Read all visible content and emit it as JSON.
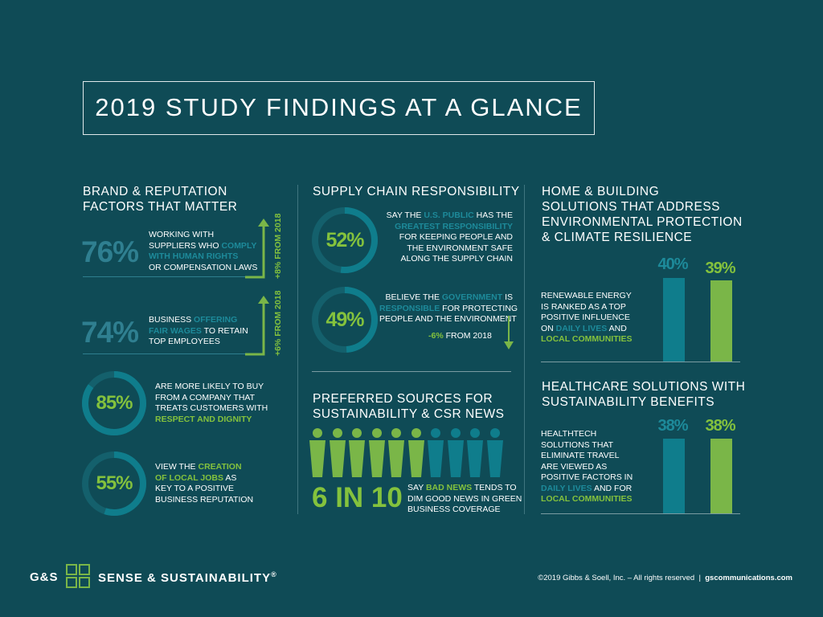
{
  "title": "2019 STUDY FINDINGS AT A GLANCE",
  "brand": {
    "heading": "BRAND & REPUTATION\nFACTORS THAT MATTER",
    "stat1": {
      "pct": "76%",
      "l1": "WORKING WITH",
      "l2a": "SUPPLIERS WHO ",
      "l2b": "COMPLY",
      "l3": "WITH HUMAN RIGHTS",
      "l4": "OR COMPENSATION LAWS",
      "change": "+8% FROM 2018"
    },
    "stat2": {
      "pct": "74%",
      "l1a": "BUSINESS ",
      "l1b": "OFFERING",
      "l2a": "FAIR WAGES",
      "l2b": " TO RETAIN",
      "l3": "TOP EMPLOYEES",
      "change": "+6% FROM 2018"
    },
    "stat3": {
      "pct": "85%",
      "value": 85,
      "l1": "ARE MORE LIKELY TO BUY",
      "l2": "FROM A COMPANY THAT",
      "l3": "TREATS CUSTOMERS WITH",
      "l4": "RESPECT AND DIGNITY"
    },
    "stat4": {
      "pct": "55%",
      "value": 55,
      "l1a": "VIEW THE ",
      "l1b": "CREATION",
      "l2a": "OF LOCAL JOBS",
      "l2b": " AS",
      "l3": "KEY TO A POSITIVE",
      "l4": "BUSINESS REPUTATION"
    }
  },
  "supply": {
    "heading": "SUPPLY CHAIN RESPONSIBILITY",
    "stat1": {
      "pct": "52%",
      "value": 52,
      "l1a": "SAY THE ",
      "l1b": "U.S. PUBLIC",
      "l1c": " HAS THE",
      "l2": "GREATEST RESPONSIBILITY",
      "l3": "FOR KEEPING PEOPLE AND",
      "l4": "THE ENVIRONMENT SAFE",
      "l5": "ALONG THE SUPPLY CHAIN"
    },
    "stat2": {
      "pct": "49%",
      "value": 49,
      "l1a": "BELIEVE THE ",
      "l1b": "GOVERNMENT",
      "l1c": " IS",
      "l2a": "RESPONSIBLE",
      "l2b": " FOR PROTECTING",
      "l3": "PEOPLE AND THE ENVIRONMENT",
      "change_a": "-6%",
      "change_b": " FROM 2018"
    }
  },
  "sources": {
    "heading": "PREFERRED SOURCES FOR\nSUSTAINABILITY & CSR NEWS",
    "people_total": 10,
    "people_highlighted": 6,
    "stat": "6 IN 10",
    "l1a": "SAY ",
    "l1b": "BAD NEWS",
    "l1c": " TENDS TO",
    "l2": "DIM GOOD NEWS IN GREEN",
    "l3": "BUSINESS COVERAGE"
  },
  "home": {
    "heading": "HOME & BUILDING\nSOLUTIONS THAT ADDRESS\nENVIRONMENTAL PROTECTION\n& CLIMATE RESILIENCE",
    "l1": "RENEWABLE ENERGY",
    "l2": "IS RANKED AS A TOP",
    "l3": "POSITIVE INFLUENCE",
    "l4a": "ON ",
    "l4b": "DAILY LIVES",
    "l4c": " AND",
    "l5": "LOCAL COMMUNITIES",
    "bars": [
      {
        "label": "40%",
        "value": 40
      },
      {
        "label": "39%",
        "value": 39
      }
    ]
  },
  "health": {
    "heading": "HEALTHCARE SOLUTIONS WITH\nSUSTAINABILITY BENEFITS",
    "l1": "HEALTHTECH",
    "l2": "SOLUTIONS THAT",
    "l3": "ELIMINATE TRAVEL",
    "l4": "ARE VIEWED AS",
    "l5": "POSITIVE FACTORS IN",
    "l6a": "DAILY LIVES",
    "l6b": " AND FOR",
    "l7": "LOCAL COMMUNITIES",
    "bars": [
      {
        "label": "38%",
        "value": 38
      },
      {
        "label": "38%",
        "value": 38
      }
    ]
  },
  "footer": {
    "logo_left": "G&S",
    "logo_right": "SENSE & SUSTAINABILITY",
    "reg": "®",
    "copyright": "©2019 Gibbs & Soell, Inc. – All rights reserved",
    "sep": "|",
    "site": "gscommunications.com"
  },
  "colors": {
    "background": "#0f4b56",
    "teal": "#0f7d8c",
    "green": "#7ab648"
  }
}
